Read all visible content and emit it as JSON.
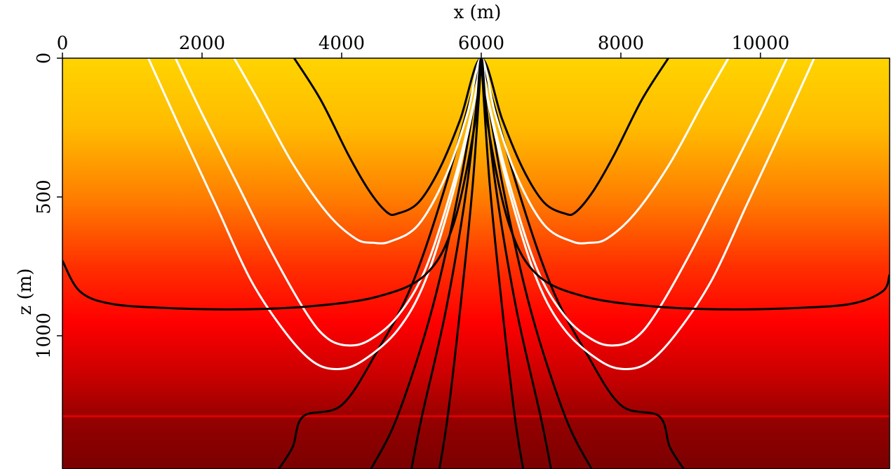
{
  "chart_data": {
    "type": "line",
    "title": "",
    "xlabel": "x (m)",
    "ylabel": "z (m)",
    "xlim": [
      0,
      11850
    ],
    "ylim": [
      0,
      1480
    ],
    "y_inverted": true,
    "x_ticks": [
      0,
      2000,
      4000,
      6000,
      8000,
      10000
    ],
    "y_ticks": [
      0,
      500,
      1000
    ],
    "x_tick_labels": [
      "0",
      "2000",
      "4000",
      "6000",
      "8000",
      "10000"
    ],
    "y_tick_labels": [
      "0",
      "500",
      "1000"
    ],
    "background": {
      "kind": "velocity-gradient",
      "color_stops": [
        {
          "z": 0,
          "color": "#ffd400"
        },
        {
          "z": 250,
          "color": "#ffbb00"
        },
        {
          "z": 500,
          "color": "#ff7f00"
        },
        {
          "z": 750,
          "color": "#ff3000"
        },
        {
          "z": 950,
          "color": "#ff0000"
        },
        {
          "z": 1150,
          "color": "#c80000"
        },
        {
          "z": 1300,
          "color": "#960000"
        },
        {
          "z": 1480,
          "color": "#7a0000"
        }
      ],
      "interface_depth": 1290,
      "interface_color": "#e00000"
    },
    "source": {
      "x": 6000,
      "z": 0
    },
    "wavefronts": [
      {
        "color": "#000000",
        "points": [
          [
            3320,
            0
          ],
          [
            3700,
            150
          ],
          [
            4100,
            350
          ],
          [
            4400,
            480
          ],
          [
            4650,
            555
          ],
          [
            4800,
            560
          ],
          [
            5100,
            520
          ],
          [
            5400,
            400
          ],
          [
            5700,
            220
          ],
          [
            6000,
            0
          ],
          [
            6300,
            220
          ],
          [
            6600,
            400
          ],
          [
            6900,
            520
          ],
          [
            7200,
            560
          ],
          [
            7350,
            555
          ],
          [
            7600,
            480
          ],
          [
            7900,
            350
          ],
          [
            8300,
            150
          ],
          [
            8680,
            0
          ]
        ]
      },
      {
        "color": "#ffffff",
        "points": [
          [
            2460,
            0
          ],
          [
            2800,
            150
          ],
          [
            3300,
            380
          ],
          [
            3800,
            560
          ],
          [
            4200,
            650
          ],
          [
            4450,
            665
          ],
          [
            4700,
            660
          ],
          [
            5100,
            600
          ],
          [
            5500,
            420
          ],
          [
            5800,
            200
          ],
          [
            6000,
            0
          ],
          [
            6200,
            200
          ],
          [
            6500,
            420
          ],
          [
            6900,
            600
          ],
          [
            7300,
            660
          ],
          [
            7550,
            665
          ],
          [
            7800,
            650
          ],
          [
            8200,
            560
          ],
          [
            8700,
            380
          ],
          [
            9200,
            150
          ],
          [
            9540,
            0
          ]
        ]
      },
      {
        "color": "#ffffff",
        "points": [
          [
            1620,
            0
          ],
          [
            2000,
            200
          ],
          [
            2500,
            450
          ],
          [
            3000,
            700
          ],
          [
            3500,
            920
          ],
          [
            3800,
            1010
          ],
          [
            4100,
            1035
          ],
          [
            4400,
            1015
          ],
          [
            4800,
            930
          ],
          [
            5200,
            760
          ],
          [
            5600,
            450
          ],
          [
            5900,
            150
          ],
          [
            6000,
            0
          ],
          [
            6100,
            150
          ],
          [
            6400,
            450
          ],
          [
            6800,
            760
          ],
          [
            7200,
            930
          ],
          [
            7600,
            1015
          ],
          [
            7900,
            1035
          ],
          [
            8200,
            1010
          ],
          [
            8500,
            920
          ],
          [
            9000,
            700
          ],
          [
            9500,
            450
          ],
          [
            10000,
            200
          ],
          [
            10380,
            0
          ]
        ]
      },
      {
        "color": "#ffffff",
        "points": [
          [
            1230,
            0
          ],
          [
            1700,
            260
          ],
          [
            2200,
            530
          ],
          [
            2700,
            800
          ],
          [
            3200,
            990
          ],
          [
            3600,
            1095
          ],
          [
            3950,
            1120
          ],
          [
            4300,
            1090
          ],
          [
            4800,
            980
          ],
          [
            5200,
            800
          ],
          [
            5600,
            480
          ],
          [
            5900,
            160
          ],
          [
            6000,
            0
          ],
          [
            6100,
            160
          ],
          [
            6400,
            480
          ],
          [
            6800,
            800
          ],
          [
            7200,
            980
          ],
          [
            7700,
            1090
          ],
          [
            8050,
            1120
          ],
          [
            8400,
            1095
          ],
          [
            8800,
            990
          ],
          [
            9300,
            800
          ],
          [
            9800,
            530
          ],
          [
            10300,
            260
          ],
          [
            10770,
            0
          ]
        ]
      },
      {
        "color": "#000000",
        "points": [
          [
            0,
            730
          ],
          [
            250,
            840
          ],
          [
            700,
            885
          ],
          [
            1500,
            900
          ],
          [
            2500,
            905
          ],
          [
            3500,
            895
          ],
          [
            4500,
            860
          ],
          [
            5200,
            780
          ],
          [
            5600,
            600
          ],
          [
            5900,
            250
          ],
          [
            6000,
            0
          ],
          [
            6100,
            250
          ],
          [
            6400,
            600
          ],
          [
            6800,
            780
          ],
          [
            7500,
            860
          ],
          [
            8500,
            895
          ],
          [
            9500,
            905
          ],
          [
            10500,
            900
          ],
          [
            11300,
            885
          ],
          [
            11750,
            840
          ],
          [
            11850,
            780
          ]
        ]
      }
    ],
    "rays": [
      {
        "color": "#000000",
        "points": [
          [
            6000,
            0
          ],
          [
            5500,
            450
          ],
          [
            5000,
            820
          ],
          [
            4500,
            1060
          ],
          [
            4000,
            1250
          ],
          [
            3450,
            1290
          ],
          [
            3300,
            1400
          ],
          [
            3100,
            1480
          ]
        ]
      },
      {
        "color": "#000000",
        "points": [
          [
            6000,
            0
          ],
          [
            6500,
            450
          ],
          [
            7000,
            820
          ],
          [
            7500,
            1060
          ],
          [
            8000,
            1250
          ],
          [
            8550,
            1290
          ],
          [
            8700,
            1400
          ],
          [
            8900,
            1480
          ]
        ]
      },
      {
        "color": "#000000",
        "points": [
          [
            6000,
            0
          ],
          [
            5700,
            450
          ],
          [
            5300,
            900
          ],
          [
            4800,
            1290
          ],
          [
            4420,
            1480
          ]
        ]
      },
      {
        "color": "#000000",
        "points": [
          [
            6000,
            0
          ],
          [
            6300,
            450
          ],
          [
            6700,
            900
          ],
          [
            7200,
            1290
          ],
          [
            7580,
            1480
          ]
        ]
      },
      {
        "color": "#000000",
        "points": [
          [
            6000,
            0
          ],
          [
            5800,
            450
          ],
          [
            5500,
            900
          ],
          [
            5150,
            1290
          ],
          [
            5000,
            1480
          ]
        ]
      },
      {
        "color": "#000000",
        "points": [
          [
            6000,
            0
          ],
          [
            6200,
            450
          ],
          [
            6500,
            900
          ],
          [
            6850,
            1290
          ],
          [
            7000,
            1480
          ]
        ]
      },
      {
        "color": "#000000",
        "points": [
          [
            6000,
            0
          ],
          [
            5880,
            450
          ],
          [
            5700,
            900
          ],
          [
            5520,
            1290
          ],
          [
            5400,
            1480
          ]
        ]
      },
      {
        "color": "#000000",
        "points": [
          [
            6000,
            0
          ],
          [
            6120,
            450
          ],
          [
            6300,
            900
          ],
          [
            6480,
            1290
          ],
          [
            6600,
            1480
          ]
        ]
      }
    ]
  }
}
